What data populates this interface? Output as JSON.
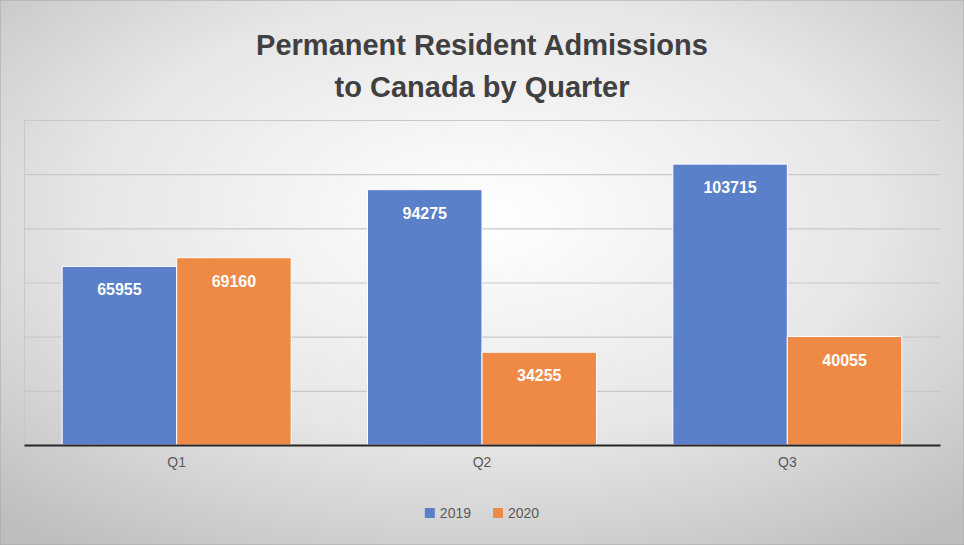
{
  "chart_data": {
    "type": "bar",
    "title": "Permanent Resident Admissions\nto Canada by Quarter",
    "categories": [
      "Q1",
      "Q2",
      "Q3"
    ],
    "series": [
      {
        "name": "2019",
        "color": "#5a80c9",
        "values": [
          65955,
          94275,
          103715
        ]
      },
      {
        "name": "2020",
        "color": "#ee8a45",
        "values": [
          69160,
          34255,
          40055
        ]
      }
    ],
    "ylim": [
      0,
      120000
    ],
    "yticks": [
      0,
      20000,
      40000,
      60000,
      80000,
      100000,
      120000
    ],
    "grid": true,
    "legend": "bottom",
    "data_labels": true,
    "tick_labels": "x"
  }
}
